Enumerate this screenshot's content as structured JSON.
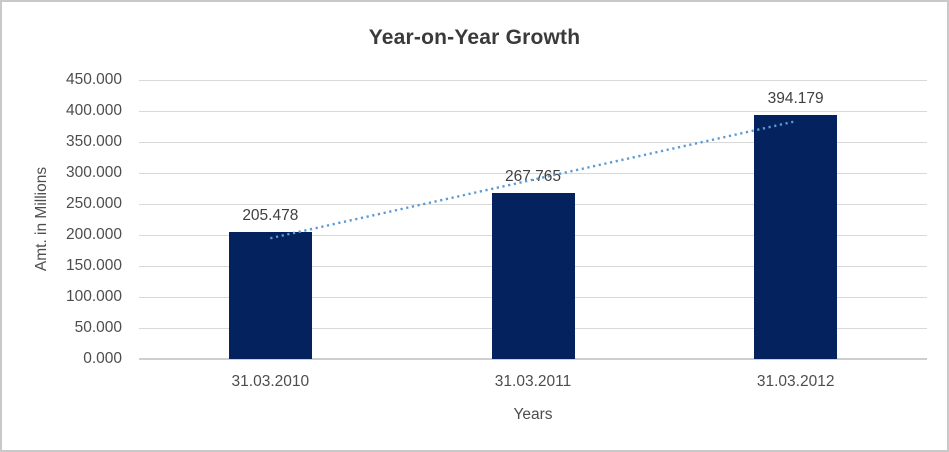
{
  "window": {
    "background_color": "#ffffff",
    "border_color": "#c9c9c9"
  },
  "chart_data": {
    "type": "bar",
    "title": "Year-on-Year Growth",
    "xlabel": "Years",
    "ylabel": "Amt. in Millions",
    "categories": [
      "31.03.2010",
      "31.03.2011",
      "31.03.2012"
    ],
    "values": [
      205.478,
      267.765,
      394.179
    ],
    "data_labels": [
      "205.478",
      "267.765",
      "394.179"
    ],
    "ylim": [
      0,
      450
    ],
    "ytick_step": 50,
    "ytick_labels": [
      "0.000",
      "50.000",
      "100.000",
      "150.000",
      "200.000",
      "250.000",
      "300.000",
      "350.000",
      "400.000",
      "450.000"
    ],
    "grid": true,
    "legend": "none",
    "colors": {
      "bar": "#04225e",
      "trendline": "#5b9bd5",
      "gridline": "#d9d9d9",
      "axis_line": "#cfcfcf",
      "tick_text": "#4d4d4d",
      "title_text": "#3a3a3a",
      "data_label_text": "#404040"
    },
    "trendline": {
      "type": "linear",
      "style": "dotted",
      "fitted_values": [
        194.79,
        289.14,
        383.49
      ]
    }
  }
}
